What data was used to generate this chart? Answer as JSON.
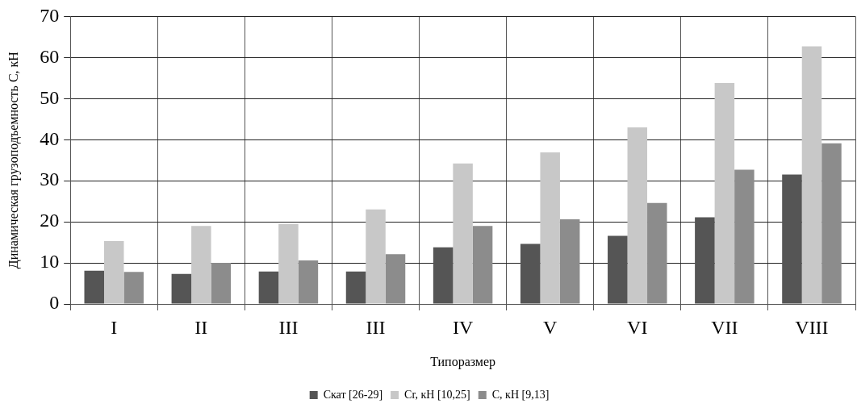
{
  "chart_data": {
    "type": "bar",
    "xlabel": "Типоразмер",
    "ylabel": "Динамическая грузоподъемность С, кН",
    "categories": [
      "I",
      "II",
      "III",
      "III",
      "IV",
      "V",
      "VI",
      "VII",
      "VIII"
    ],
    "series": [
      {
        "name": "Скат [26-29]",
        "color": "#555555",
        "values": [
          8.1,
          7.3,
          7.9,
          7.9,
          13.8,
          14.6,
          16.6,
          21.1,
          31.5
        ]
      },
      {
        "name": "Сr, кН [10,25]",
        "color": "#c8c8c8",
        "values": [
          15.3,
          19.0,
          19.5,
          23.0,
          34.2,
          36.9,
          43.0,
          53.8,
          62.7
        ]
      },
      {
        "name": "С, кН [9,13]",
        "color": "#8c8c8c",
        "values": [
          7.8,
          10.0,
          10.6,
          12.1,
          19.0,
          20.6,
          24.6,
          32.7,
          39.1
        ]
      }
    ],
    "ylim": [
      0,
      70
    ],
    "yticks": [
      0,
      10,
      20,
      30,
      40,
      50,
      60,
      70
    ],
    "grid": true,
    "legend": "bottom"
  }
}
